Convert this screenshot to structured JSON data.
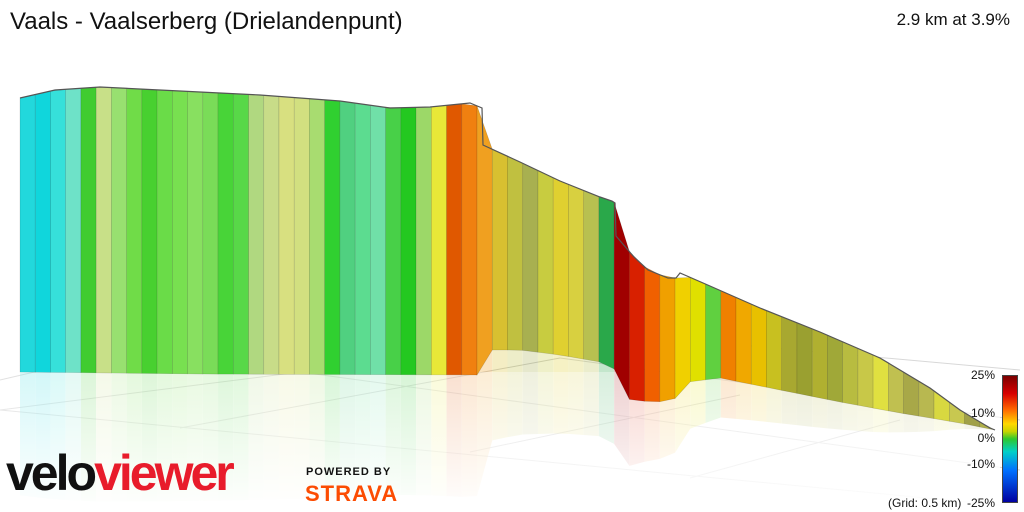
{
  "title": "Vaals - Vaalserberg (Drielandenpunt)",
  "summary": "2.9 km at 3.9%",
  "legend": {
    "ticks": [
      "25%",
      "10%",
      "0%",
      "-10%",
      "-25%"
    ],
    "grid_note": "(Grid: 0.5 km)"
  },
  "branding": {
    "logo_part1": "velo",
    "logo_part2": "viewer",
    "powered_by": "POWERED BY",
    "strava": "STRAVA",
    "logo_color": "#e81c2b",
    "strava_color": "#fc4c02"
  },
  "chart_data": {
    "type": "area",
    "distance_km": 2.9,
    "average_gradient_pct": 3.9,
    "gradient_color_scale": [
      "25%",
      "10%",
      "0%",
      "-10%",
      "-25%"
    ],
    "profile": [
      {
        "g": -8,
        "c": "#22d8dc"
      },
      {
        "g": -9,
        "c": "#10d6dc"
      },
      {
        "g": -8,
        "c": "#36e0da"
      },
      {
        "g": -5,
        "c": "#6ee2c8"
      },
      {
        "g": 1,
        "c": "#40cc30"
      },
      {
        "g": 3,
        "c": "#c8e088"
      },
      {
        "g": 2,
        "c": "#98e070"
      },
      {
        "g": 1,
        "c": "#70dc48"
      },
      {
        "g": 0,
        "c": "#48d030"
      },
      {
        "g": 2,
        "c": "#6adc48"
      },
      {
        "g": 1,
        "c": "#78e050"
      },
      {
        "g": 2,
        "c": "#88e060"
      },
      {
        "g": 1,
        "c": "#7adc58"
      },
      {
        "g": 0,
        "c": "#48d438"
      },
      {
        "g": 1,
        "c": "#58d848"
      },
      {
        "g": 3,
        "c": "#b0d880"
      },
      {
        "g": 4,
        "c": "#c8dc88"
      },
      {
        "g": 5,
        "c": "#d8e080"
      },
      {
        "g": 4,
        "c": "#d2e080"
      },
      {
        "g": 2,
        "c": "#a8dc70"
      },
      {
        "g": 0,
        "c": "#30d030"
      },
      {
        "g": -1,
        "c": "#50d080"
      },
      {
        "g": -2,
        "c": "#5cdc90"
      },
      {
        "g": -3,
        "c": "#70e0a8"
      },
      {
        "g": 0,
        "c": "#48d048"
      },
      {
        "g": 0,
        "c": "#24c820"
      },
      {
        "g": 3,
        "c": "#9cd868"
      },
      {
        "g": 7,
        "c": "#e8e838"
      },
      {
        "g": 18,
        "c": "#e05800"
      },
      {
        "g": 12,
        "c": "#f08010"
      },
      {
        "g": 10,
        "c": "#f0a020"
      },
      {
        "g": 8,
        "c": "#d8c030"
      },
      {
        "g": 7,
        "c": "#c0c040"
      },
      {
        "g": 5,
        "c": "#a8b050"
      },
      {
        "g": 6,
        "c": "#c8cc40"
      },
      {
        "g": 8,
        "c": "#e0d030"
      },
      {
        "g": 7,
        "c": "#d8d040"
      },
      {
        "g": 5,
        "c": "#b8c050"
      },
      {
        "g": 0,
        "c": "#2aa84a"
      },
      {
        "g": 25,
        "c": "#a00000"
      },
      {
        "g": 20,
        "c": "#d82000"
      },
      {
        "g": 14,
        "c": "#f06000"
      },
      {
        "g": 10,
        "c": "#f0a000"
      },
      {
        "g": 8,
        "c": "#f0d000"
      },
      {
        "g": 6,
        "c": "#e0e000"
      },
      {
        "g": 0,
        "c": "#60d040"
      },
      {
        "g": 12,
        "c": "#f08000"
      },
      {
        "g": 10,
        "c": "#f0a800"
      },
      {
        "g": 8,
        "c": "#e8c000"
      },
      {
        "g": 6,
        "c": "#c8c020"
      },
      {
        "g": 5,
        "c": "#a8a830"
      },
      {
        "g": 4,
        "c": "#9aa030"
      },
      {
        "g": 5,
        "c": "#b0b030"
      },
      {
        "g": 4,
        "c": "#a0a838"
      },
      {
        "g": 5,
        "c": "#b8bc40"
      },
      {
        "g": 6,
        "c": "#c8c848"
      },
      {
        "g": 7,
        "c": "#e0e040"
      },
      {
        "g": 5,
        "c": "#c0c050"
      },
      {
        "g": 4,
        "c": "#a8a848"
      },
      {
        "g": 5,
        "c": "#b8b850"
      },
      {
        "g": 7,
        "c": "#d8d840"
      },
      {
        "g": 6,
        "c": "#c8c850"
      },
      {
        "g": 4,
        "c": "#a0a048"
      },
      {
        "g": 5,
        "c": "#b0b048"
      }
    ]
  }
}
